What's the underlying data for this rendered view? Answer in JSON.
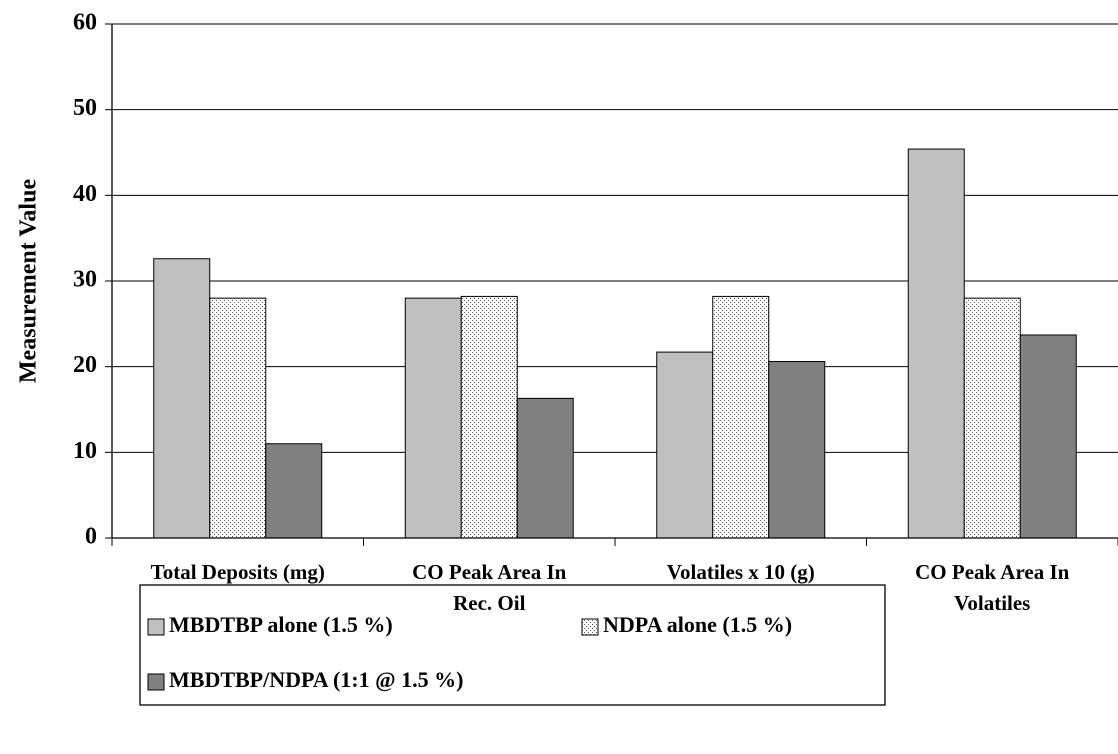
{
  "chart_data": {
    "type": "bar",
    "y_label": "Measurement Value",
    "categories": [
      "Total Deposits (mg)",
      "CO Peak Area In\nRec. Oil",
      "Volatiles x 10 (g)",
      "CO Peak Area In\nVolatiles"
    ],
    "series": [
      {
        "name": "MBDTBP alone (1.5 %)",
        "color": "#c0c0c0",
        "values": [
          32.6,
          28,
          21.7,
          45.4
        ]
      },
      {
        "name": "NDPA alone (1.5 %)",
        "color": "#ffffff",
        "pattern": "dots",
        "values": [
          28,
          28.2,
          28.2,
          28
        ]
      },
      {
        "name": "MBDTBP/NDPA (1:1 @ 1.5 %)",
        "color": "#808080",
        "values": [
          11,
          16.3,
          20.6,
          23.7
        ]
      }
    ],
    "ylim": [
      0,
      60
    ],
    "yticks": [
      0,
      10,
      20,
      30,
      40,
      50,
      60
    ],
    "grid": true
  }
}
